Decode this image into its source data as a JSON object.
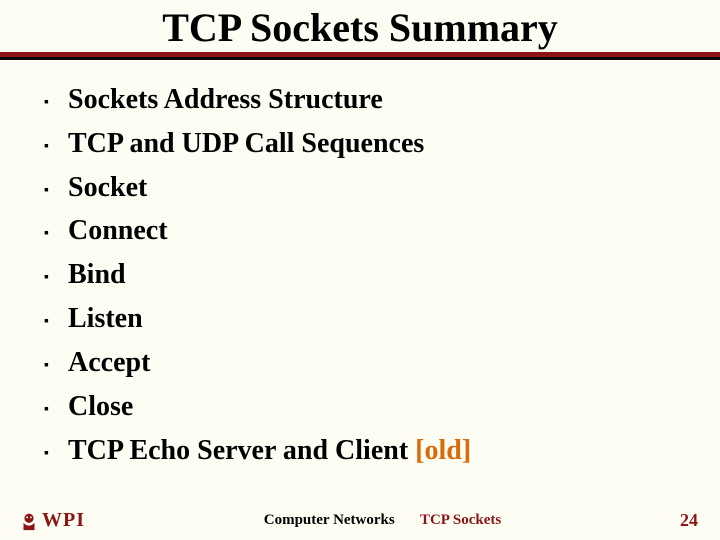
{
  "colors": {
    "background": "#fdfdf3",
    "accent": "#8c1515",
    "text": "#000000",
    "highlight": "#d86b0a"
  },
  "title": "TCP Sockets Summary",
  "bullets": [
    {
      "text": "Sockets Address Structure"
    },
    {
      "text": "TCP and UDP Call Sequences"
    },
    {
      "text": "Socket"
    },
    {
      "text": "Connect"
    },
    {
      "text": "Bind"
    },
    {
      "text": "Listen"
    },
    {
      "text": "Accept"
    },
    {
      "text": "Close"
    },
    {
      "text": "TCP Echo Server and Client",
      "suffix": "[old]",
      "suffix_color": "#d86b0a"
    }
  ],
  "footer": {
    "logo_text": "WPI",
    "center_left": "Computer Networks",
    "center_right": "TCP Sockets",
    "page": "24"
  }
}
